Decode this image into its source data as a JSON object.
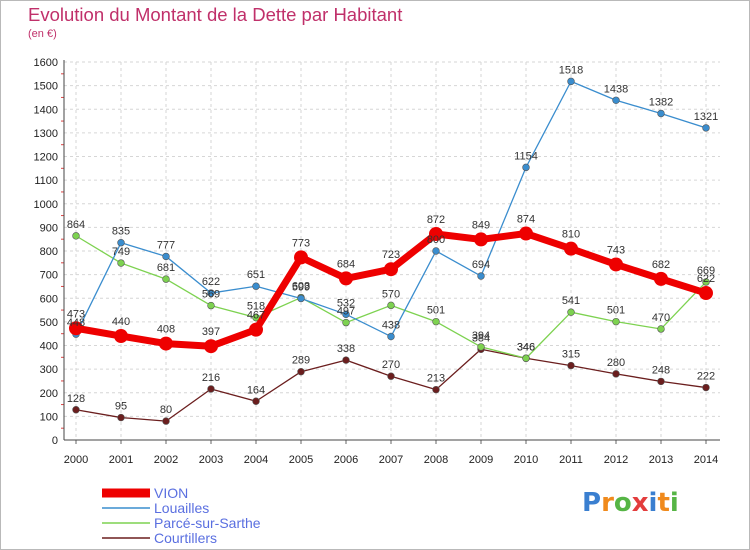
{
  "title": "Evolution du Montant de la Dette par Habitant",
  "subtitle": "(en €)",
  "logo": "Proxiti",
  "chart_data": {
    "type": "line",
    "title": "Evolution du Montant de la Dette par Habitant",
    "subtitle": "(en €)",
    "xlabel": "",
    "ylabel": "",
    "x": [
      "2000",
      "2001",
      "2002",
      "2003",
      "2004",
      "2005",
      "2006",
      "2007",
      "2008",
      "2009",
      "2010",
      "2011",
      "2012",
      "2013",
      "2014"
    ],
    "ylim": [
      0,
      1600
    ],
    "yticks": [
      0,
      100,
      200,
      300,
      400,
      500,
      600,
      700,
      800,
      900,
      1000,
      1100,
      1200,
      1300,
      1400,
      1500,
      1600
    ],
    "grid": true,
    "legend_position": "bottom-left",
    "series": [
      {
        "name": "VION",
        "color": "#ee0000",
        "values": [
          473,
          440,
          408,
          397,
          467,
          773,
          684,
          723,
          872,
          849,
          874,
          810,
          743,
          682,
          622
        ]
      },
      {
        "name": "Louailles",
        "color": "#3a8dce",
        "values": [
          448,
          835,
          777,
          622,
          651,
          599,
          532,
          438,
          800,
          694,
          1154,
          1518,
          1438,
          1382,
          1321
        ]
      },
      {
        "name": "Parcé-sur-Sarthe",
        "color": "#7dd250",
        "values": [
          864,
          749,
          681,
          569,
          518,
          603,
          497,
          570,
          501,
          394,
          346,
          541,
          501,
          470,
          669
        ]
      },
      {
        "name": "Courtillers",
        "color": "#6b1e1e",
        "values": [
          128,
          95,
          80,
          216,
          164,
          289,
          338,
          270,
          213,
          384,
          346,
          315,
          280,
          248,
          222
        ]
      }
    ]
  }
}
